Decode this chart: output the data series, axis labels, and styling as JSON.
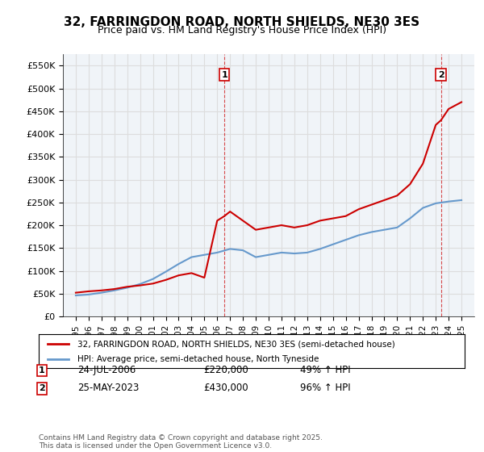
{
  "title": "32, FARRINGDON ROAD, NORTH SHIELDS, NE30 3ES",
  "subtitle": "Price paid vs. HM Land Registry's House Price Index (HPI)",
  "legend_line1": "32, FARRINGDON ROAD, NORTH SHIELDS, NE30 3ES (semi-detached house)",
  "legend_line2": "HPI: Average price, semi-detached house, North Tyneside",
  "footer": "Contains HM Land Registry data © Crown copyright and database right 2025.\nThis data is licensed under the Open Government Licence v3.0.",
  "annotation1": {
    "num": "1",
    "date": "24-JUL-2006",
    "price": "£220,000",
    "hpi": "49% ↑ HPI"
  },
  "annotation2": {
    "num": "2",
    "date": "25-MAY-2023",
    "price": "£430,000",
    "hpi": "96% ↑ HPI"
  },
  "red_color": "#cc0000",
  "blue_color": "#6699cc",
  "background_color": "#ffffff",
  "grid_color": "#dddddd",
  "ylim": [
    0,
    575000
  ],
  "yticks": [
    0,
    50000,
    100000,
    150000,
    200000,
    250000,
    300000,
    350000,
    400000,
    450000,
    500000,
    550000
  ],
  "ytick_labels": [
    "£0",
    "£50K",
    "£100K",
    "£150K",
    "£200K",
    "£250K",
    "£300K",
    "£350K",
    "£400K",
    "£450K",
    "£500K",
    "£550K"
  ],
  "red_data": {
    "years": [
      1995,
      1996,
      1997,
      1998,
      1999,
      2000,
      2001,
      2002,
      2003,
      2004,
      2005,
      2006,
      2006.56,
      2007,
      2008,
      2009,
      2010,
      2011,
      2012,
      2013,
      2014,
      2015,
      2016,
      2017,
      2018,
      2019,
      2020,
      2021,
      2022,
      2023,
      2023.4,
      2024,
      2025
    ],
    "values": [
      52000,
      55000,
      57000,
      60000,
      65000,
      68000,
      72000,
      80000,
      90000,
      95000,
      85000,
      210000,
      220000,
      230000,
      210000,
      190000,
      195000,
      200000,
      195000,
      200000,
      210000,
      215000,
      220000,
      235000,
      245000,
      255000,
      265000,
      290000,
      335000,
      420000,
      430000,
      455000,
      470000
    ]
  },
  "blue_data": {
    "years": [
      1995,
      1996,
      1997,
      1998,
      1999,
      2000,
      2001,
      2002,
      2003,
      2004,
      2005,
      2006,
      2007,
      2008,
      2009,
      2010,
      2011,
      2012,
      2013,
      2014,
      2015,
      2016,
      2017,
      2018,
      2019,
      2020,
      2021,
      2022,
      2023,
      2024,
      2025
    ],
    "values": [
      46000,
      48000,
      52000,
      57000,
      63000,
      71000,
      82000,
      98000,
      115000,
      130000,
      135000,
      140000,
      148000,
      145000,
      130000,
      135000,
      140000,
      138000,
      140000,
      148000,
      158000,
      168000,
      178000,
      185000,
      190000,
      195000,
      215000,
      238000,
      248000,
      252000,
      255000
    ]
  },
  "xmin": 1994,
  "xmax": 2026,
  "xtick_years": [
    1995,
    1996,
    1997,
    1998,
    1999,
    2000,
    2001,
    2002,
    2003,
    2004,
    2005,
    2006,
    2007,
    2008,
    2009,
    2010,
    2011,
    2012,
    2013,
    2014,
    2015,
    2016,
    2017,
    2018,
    2019,
    2020,
    2021,
    2022,
    2023,
    2024,
    2025
  ]
}
